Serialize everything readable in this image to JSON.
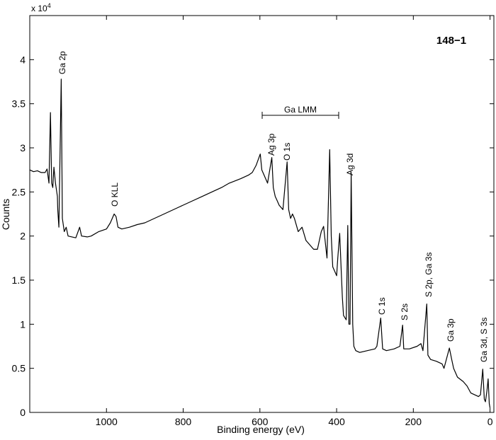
{
  "chart_data": {
    "type": "line",
    "title": "148−1",
    "y_multiplier": {
      "base": "x 10",
      "exponent": "4"
    },
    "xlabel": "Binding energy (eV)",
    "ylabel": "Counts",
    "xlim": [
      1200,
      -10
    ],
    "ylim": [
      0,
      4.5
    ],
    "xticks": [
      0,
      200,
      400,
      600,
      800,
      1000
    ],
    "yticks": [
      0,
      0.5,
      1,
      1.5,
      2,
      2.5,
      3,
      3.5,
      4
    ],
    "bracket_label": "Ga LMM",
    "annotations": [
      "Ga 2p",
      "O KLL",
      "Ag 3p",
      "O 1s",
      "Ag 3d",
      "C 1s",
      "S 2s",
      "S 2p, Ga 3s",
      "Ga 3p",
      "Ga 3d, S 3s"
    ],
    "series": [
      {
        "color": "#000000",
        "x": [
          1200,
          1190,
          1180,
          1170,
          1160,
          1155,
          1150,
          1146,
          1143,
          1140,
          1137,
          1133,
          1128,
          1127,
          1124,
          1118,
          1115,
          1110,
          1105,
          1100,
          1090,
          1080,
          1070,
          1065,
          1050,
          1040,
          1020,
          1000,
          990,
          980,
          975,
          970,
          960,
          940,
          920,
          900,
          880,
          850,
          820,
          800,
          780,
          750,
          720,
          700,
          680,
          650,
          630,
          620,
          610,
          599,
          595,
          590,
          585,
          580,
          569,
          565,
          560,
          555,
          550,
          540,
          529,
          525,
          520,
          515,
          510,
          500,
          490,
          480,
          470,
          460,
          450,
          440,
          434,
          430,
          425,
          418,
          414,
          410,
          405,
          400,
          397,
          392,
          388,
          385,
          382,
          375,
          371,
          368,
          365,
          362,
          358,
          355,
          350,
          340,
          320,
          300,
          295,
          285,
          280,
          270,
          250,
          235,
          228,
          225,
          210,
          190,
          180,
          175,
          165,
          162,
          155,
          140,
          125,
          120,
          106,
          100,
          95,
          85,
          70,
          60,
          50,
          40,
          30,
          25,
          19,
          15,
          12,
          8,
          5,
          2,
          0
        ],
        "values": [
          2.75,
          2.73,
          2.74,
          2.72,
          2.72,
          2.76,
          2.6,
          3.4,
          2.6,
          2.55,
          2.78,
          2.6,
          2.45,
          2.3,
          2.1,
          3.78,
          2.2,
          2.05,
          2.1,
          2.0,
          1.99,
          1.98,
          2.1,
          2.0,
          1.99,
          2.0,
          2.05,
          2.08,
          2.15,
          2.25,
          2.22,
          2.1,
          2.08,
          2.1,
          2.13,
          2.15,
          2.19,
          2.25,
          2.31,
          2.35,
          2.39,
          2.45,
          2.51,
          2.55,
          2.6,
          2.65,
          2.69,
          2.72,
          2.8,
          2.93,
          2.75,
          2.7,
          2.65,
          2.6,
          2.89,
          2.55,
          2.45,
          2.4,
          2.35,
          2.3,
          2.84,
          2.3,
          2.2,
          2.25,
          2.2,
          2.05,
          2.1,
          1.95,
          1.9,
          1.85,
          1.85,
          2.05,
          2.11,
          1.95,
          1.75,
          2.98,
          2.0,
          1.65,
          1.6,
          1.55,
          1.75,
          2.03,
          1.6,
          1.3,
          1.1,
          1.05,
          2.12,
          1.0,
          1.0,
          2.72,
          1.0,
          0.75,
          0.7,
          0.68,
          0.7,
          0.72,
          0.75,
          1.07,
          0.72,
          0.7,
          0.72,
          0.75,
          0.99,
          0.72,
          0.72,
          0.75,
          0.78,
          0.7,
          1.23,
          0.65,
          0.6,
          0.58,
          0.55,
          0.5,
          0.73,
          0.6,
          0.5,
          0.4,
          0.35,
          0.3,
          0.22,
          0.2,
          0.18,
          0.2,
          0.49,
          0.15,
          0.12,
          0.25,
          0.38,
          0.1,
          0.05
        ]
      }
    ]
  }
}
